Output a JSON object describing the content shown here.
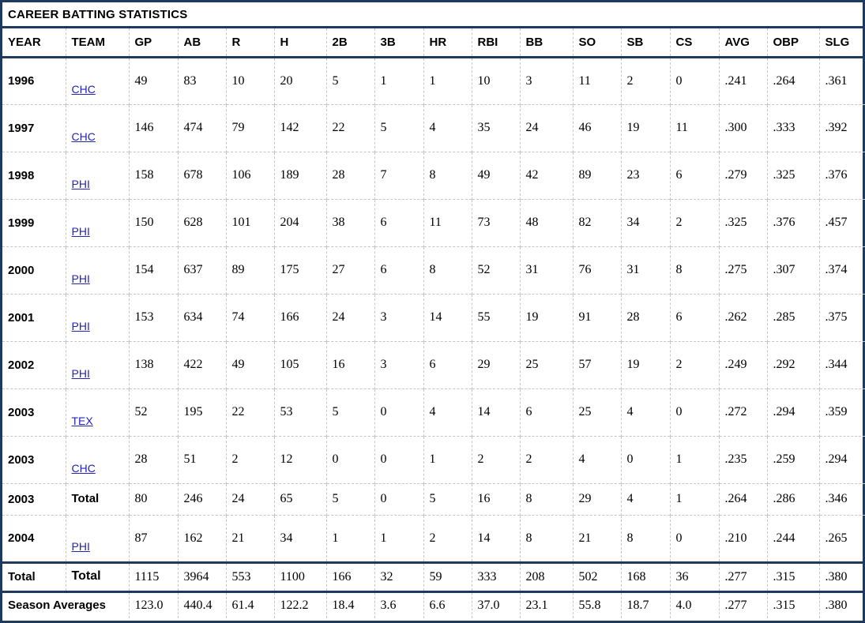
{
  "title": "CAREER BATTING STATISTICS",
  "colors": {
    "border_navy": "#1f3a5f",
    "link_blue": "#2424b4",
    "dashed_grid_gray": "#c6c6c6",
    "text_black": "#000000",
    "background": "#ffffff"
  },
  "table": {
    "columns": [
      "YEAR",
      "TEAM",
      "GP",
      "AB",
      "R",
      "H",
      "2B",
      "3B",
      "HR",
      "RBI",
      "BB",
      "SO",
      "SB",
      "CS",
      "AVG",
      "OBP",
      "SLG"
    ],
    "rows": [
      {
        "year": "1996",
        "team": "CHC",
        "team_is_link": true,
        "values": [
          "49",
          "83",
          "10",
          "20",
          "5",
          "1",
          "1",
          "10",
          "3",
          "11",
          "2",
          "0",
          ".241",
          ".264",
          ".361"
        ]
      },
      {
        "year": "1997",
        "team": "CHC",
        "team_is_link": true,
        "values": [
          "146",
          "474",
          "79",
          "142",
          "22",
          "5",
          "4",
          "35",
          "24",
          "46",
          "19",
          "11",
          ".300",
          ".333",
          ".392"
        ]
      },
      {
        "year": "1998",
        "team": "PHI",
        "team_is_link": true,
        "values": [
          "158",
          "678",
          "106",
          "189",
          "28",
          "7",
          "8",
          "49",
          "42",
          "89",
          "23",
          "6",
          ".279",
          ".325",
          ".376"
        ]
      },
      {
        "year": "1999",
        "team": "PHI",
        "team_is_link": true,
        "values": [
          "150",
          "628",
          "101",
          "204",
          "38",
          "6",
          "11",
          "73",
          "48",
          "82",
          "34",
          "2",
          ".325",
          ".376",
          ".457"
        ]
      },
      {
        "year": "2000",
        "team": "PHI",
        "team_is_link": true,
        "values": [
          "154",
          "637",
          "89",
          "175",
          "27",
          "6",
          "8",
          "52",
          "31",
          "76",
          "31",
          "8",
          ".275",
          ".307",
          ".374"
        ]
      },
      {
        "year": "2001",
        "team": "PHI",
        "team_is_link": true,
        "values": [
          "153",
          "634",
          "74",
          "166",
          "24",
          "3",
          "14",
          "55",
          "19",
          "91",
          "28",
          "6",
          ".262",
          ".285",
          ".375"
        ]
      },
      {
        "year": "2002",
        "team": "PHI",
        "team_is_link": true,
        "values": [
          "138",
          "422",
          "49",
          "105",
          "16",
          "3",
          "6",
          "29",
          "25",
          "57",
          "19",
          "2",
          ".249",
          ".292",
          ".344"
        ]
      },
      {
        "year": "2003",
        "team": "TEX",
        "team_is_link": true,
        "values": [
          "52",
          "195",
          "22",
          "53",
          "5",
          "0",
          "4",
          "14",
          "6",
          "25",
          "4",
          "0",
          ".272",
          ".294",
          ".359"
        ]
      },
      {
        "year": "2003",
        "team": "CHC",
        "team_is_link": true,
        "values": [
          "28",
          "51",
          "2",
          "12",
          "0",
          "0",
          "1",
          "2",
          "2",
          "4",
          "0",
          "1",
          ".235",
          ".259",
          ".294"
        ]
      },
      {
        "year": "2003",
        "team": "Total",
        "team_is_link": false,
        "values": [
          "80",
          "246",
          "24",
          "65",
          "5",
          "0",
          "5",
          "16",
          "8",
          "29",
          "4",
          "1",
          ".264",
          ".286",
          ".346"
        ]
      },
      {
        "year": "2004",
        "team": "PHI",
        "team_is_link": true,
        "values": [
          "87",
          "162",
          "21",
          "34",
          "1",
          "1",
          "2",
          "14",
          "8",
          "21",
          "8",
          "0",
          ".210",
          ".244",
          ".265"
        ]
      }
    ],
    "total_row": {
      "year": "Total",
      "team": "Total",
      "values": [
        "1115",
        "3964",
        "553",
        "1100",
        "166",
        "32",
        "59",
        "333",
        "208",
        "502",
        "168",
        "36",
        ".277",
        ".315",
        ".380"
      ]
    },
    "season_averages_row": {
      "label": "Season Averages",
      "values": [
        "123.0",
        "440.4",
        "61.4",
        "122.2",
        "18.4",
        "3.6",
        "6.6",
        "37.0",
        "23.1",
        "55.8",
        "18.7",
        "4.0",
        ".277",
        ".315",
        ".380"
      ]
    }
  }
}
